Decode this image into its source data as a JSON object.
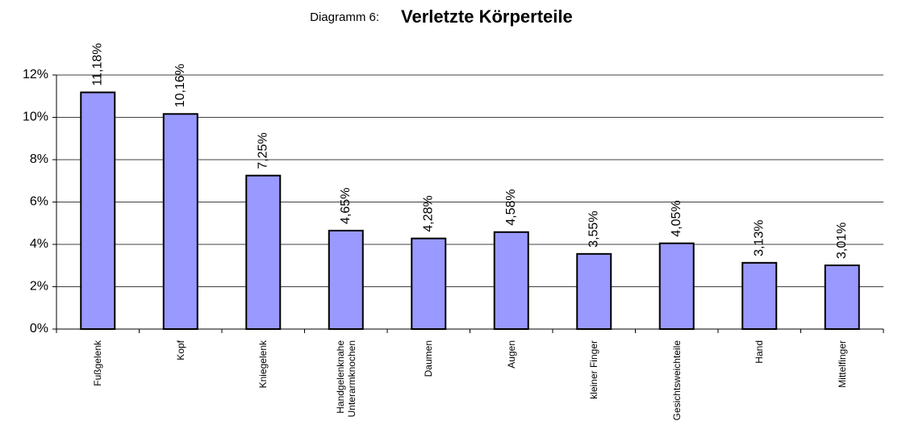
{
  "chart_data": {
    "type": "bar",
    "subtitle": "Diagramm 6:",
    "title": "Verletzte Körperteile",
    "categories": [
      "Fußgelenk",
      "Kopf",
      "Kniegelenk",
      "Handgelenknahe\nUnterarmknochen",
      "Daumen",
      "Augen",
      "kleiner Finger",
      "Gesichtsweichteile",
      "Hand",
      "Mittelfinger"
    ],
    "values": [
      11.18,
      10.16,
      7.25,
      4.65,
      4.28,
      4.58,
      3.55,
      4.05,
      3.13,
      3.01
    ],
    "value_labels": [
      "11,18%",
      "10,16%",
      "7,25%",
      "4,65%",
      "4,28%",
      "4,58%",
      "3,55%",
      "4,05%",
      "3,13%",
      "3,01%"
    ],
    "color": "#9999ff",
    "ylim": [
      0,
      12
    ],
    "yticks": [
      {
        "value": 0,
        "label": "0%"
      },
      {
        "value": 2,
        "label": "2%"
      },
      {
        "value": 4,
        "label": "4%"
      },
      {
        "value": 6,
        "label": "6%"
      },
      {
        "value": 8,
        "label": "8%"
      },
      {
        "value": 10,
        "label": "10%"
      },
      {
        "value": 12,
        "label": "12%"
      }
    ],
    "grid": true
  }
}
